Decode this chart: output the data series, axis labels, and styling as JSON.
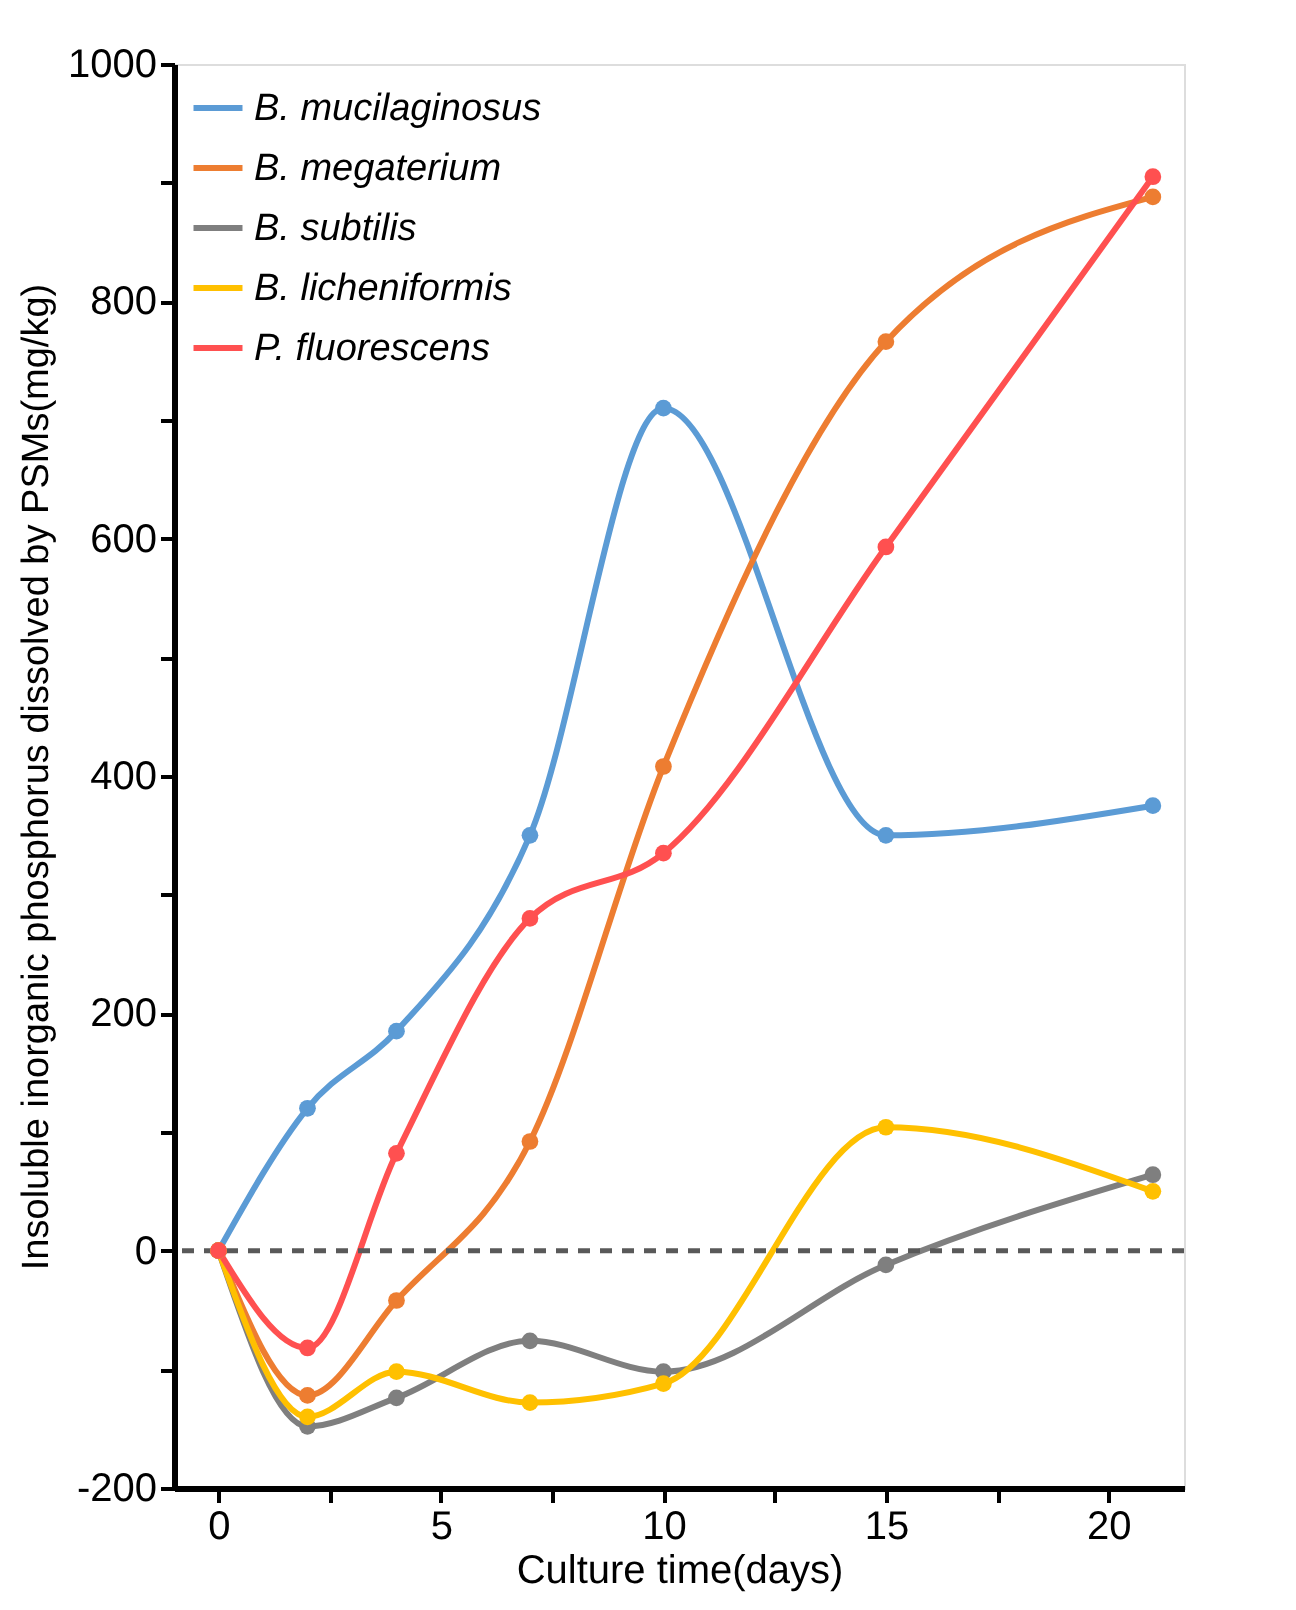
{
  "chart_data": {
    "type": "line",
    "xlabel": "Culture time(days)",
    "ylabel": "Insoluble inorganic phosphorus dissolved by PSMs(mg/kg)",
    "x": [
      0,
      2,
      4,
      7,
      10,
      15,
      21
    ],
    "series": [
      {
        "name": "B. mucilaginosus",
        "color": "#5b9bd5",
        "values": [
          0,
          120,
          185,
          350,
          710,
          350,
          375
        ]
      },
      {
        "name": "B. megaterium",
        "color": "#ed7d31",
        "values": [
          0,
          -122,
          -42,
          92,
          408,
          766,
          888
        ]
      },
      {
        "name": "B. subtilis",
        "color": "#7f7f7f",
        "values": [
          0,
          -148,
          -124,
          -76,
          -102,
          -12,
          64
        ]
      },
      {
        "name": "B. licheniformis",
        "color": "#ffc000",
        "values": [
          0,
          -140,
          -102,
          -128,
          -112,
          104,
          50
        ]
      },
      {
        "name": "P. fluorescens",
        "color": "#ff5050",
        "values": [
          0,
          -82,
          82,
          280,
          335,
          593,
          905
        ]
      }
    ],
    "xlim": [
      -1,
      21.7
    ],
    "xticks": [
      0,
      {
        "value": 2.5,
        "label": null
      },
      5,
      {
        "value": 7.5,
        "label": null
      },
      10,
      {
        "value": 12.5,
        "label": null
      },
      15,
      {
        "value": 17.5,
        "label": null
      },
      20
    ],
    "ylim": [
      -200,
      1000
    ],
    "yticks": [
      -200,
      {
        "value": -100,
        "label": null
      },
      0,
      {
        "value": 100,
        "label": null
      },
      200,
      {
        "value": 300,
        "label": null
      },
      400,
      {
        "value": 500,
        "label": null
      },
      600,
      {
        "value": 700,
        "label": null
      },
      800,
      {
        "value": 900,
        "label": null
      },
      1000
    ],
    "ref_lines": [
      {
        "axis": "y",
        "value": 0,
        "color": "#595959",
        "line_style": "dashed"
      }
    ],
    "grid": false,
    "legend": "top left",
    "marker": "circle",
    "line_style": "solid"
  }
}
